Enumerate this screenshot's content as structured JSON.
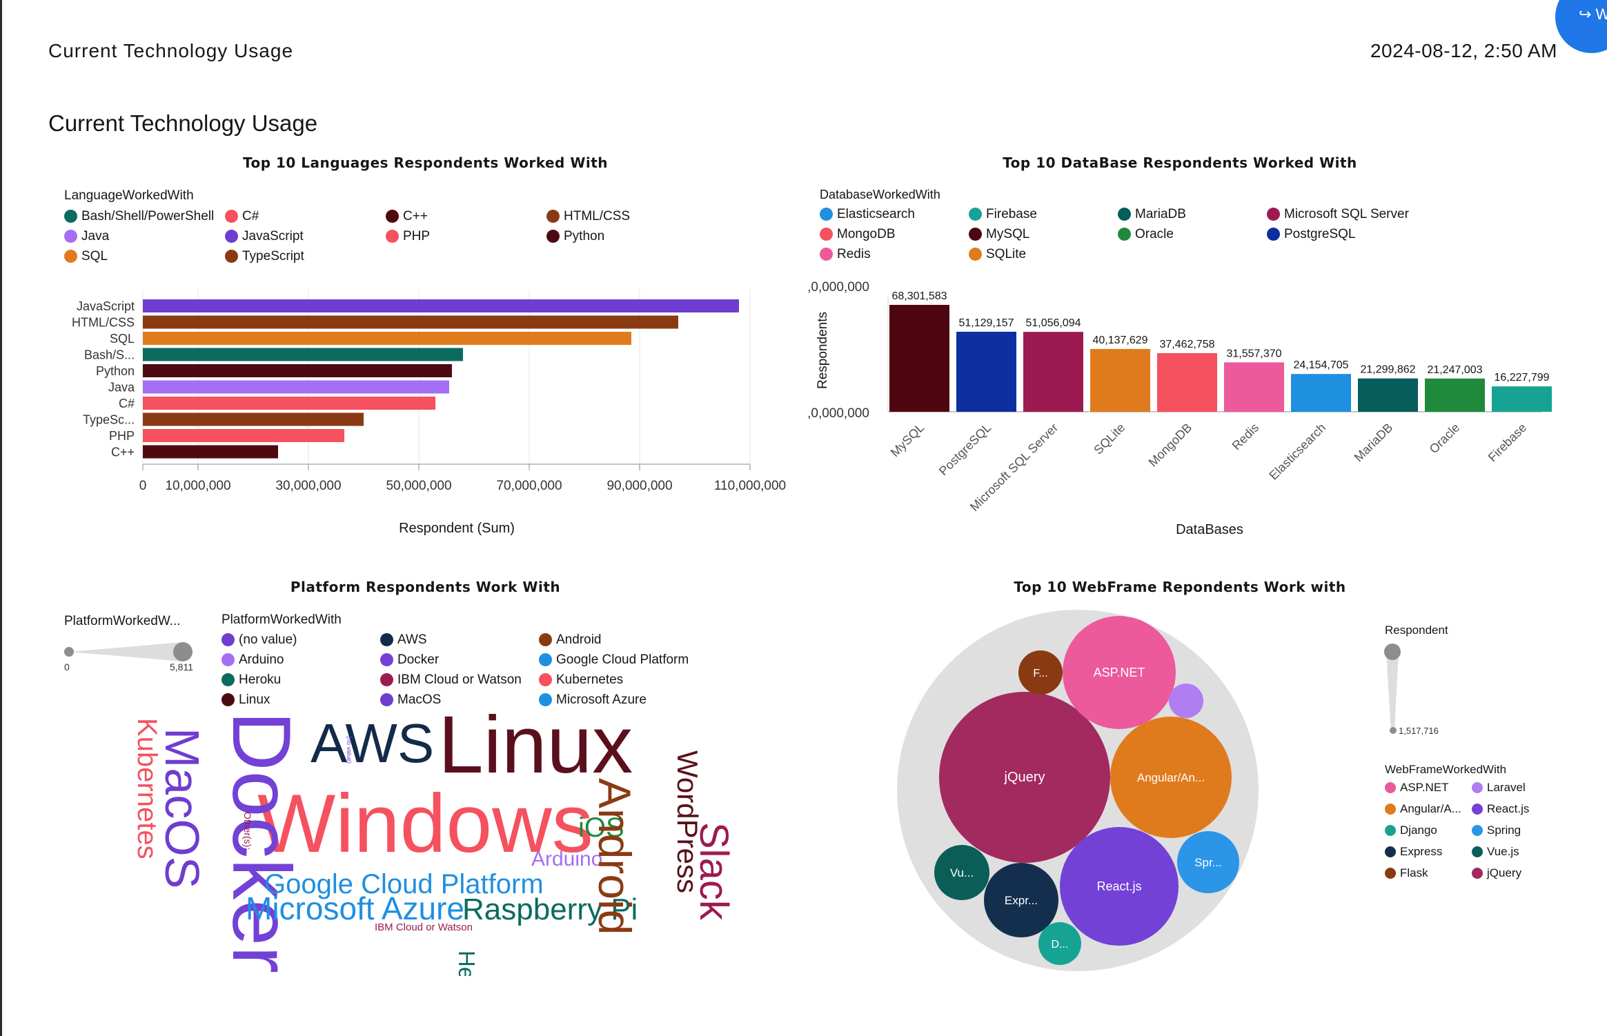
{
  "header": {
    "title": "Current Technology Usage",
    "timestamp": "2024-08-12, 2:50 AM",
    "badge_text": "↪ W"
  },
  "dashboard_title": "Current Technology Usage",
  "chart_data": [
    {
      "id": "languages",
      "type": "bar",
      "orientation": "horizontal",
      "title": "Top 10 Languages Respondents Worked With",
      "legend_title": "LanguageWorkedWith",
      "legend": [
        {
          "label": "Bash/Shell/PowerShell",
          "color": "#0b6b5f"
        },
        {
          "label": "C#",
          "color": "#f5515f"
        },
        {
          "label": "C++",
          "color": "#4e0a0f"
        },
        {
          "label": "HTML/CSS",
          "color": "#8a3a12"
        },
        {
          "label": "Java",
          "color": "#a66ef2"
        },
        {
          "label": "JavaScript",
          "color": "#6f3dd0"
        },
        {
          "label": "PHP",
          "color": "#f5515f"
        },
        {
          "label": "Python",
          "color": "#4e0a12"
        },
        {
          "label": "SQL",
          "color": "#e07b1d"
        },
        {
          "label": "TypeScript",
          "color": "#8a3a12"
        }
      ],
      "categories": [
        "JavaScript",
        "HTML/CSS",
        "SQL",
        "Bash/S...",
        "Python",
        "Java",
        "C#",
        "TypeSc...",
        "PHP",
        "C++"
      ],
      "values": [
        108000000,
        97000000,
        88500000,
        58000000,
        56000000,
        55500000,
        53000000,
        40000000,
        36500000,
        24500000
      ],
      "colors": [
        "#6f3dd0",
        "#8a3a12",
        "#e07b1d",
        "#0b6b5f",
        "#4e0a12",
        "#a66ef2",
        "#f5515f",
        "#8a3a12",
        "#f5515f",
        "#4e0a0f"
      ],
      "xticks": [
        "0",
        "10,000,000",
        "30,000,000",
        "50,000,000",
        "70,000,000",
        "90,000,000",
        "110,000,000"
      ],
      "xtick_values": [
        0,
        10000000,
        30000000,
        50000000,
        70000000,
        90000000,
        110000000
      ],
      "xlim": [
        0,
        110000000
      ],
      "xlabel": "Respondent (Sum)",
      "grid": true
    },
    {
      "id": "databases",
      "type": "bar",
      "orientation": "vertical",
      "title": "Top 10 DataBase Respondents Worked With",
      "legend_title": "DatabaseWorkedWith",
      "legend": [
        {
          "label": "Elasticsearch",
          "color": "#1f8fe0"
        },
        {
          "label": "Firebase",
          "color": "#16a394"
        },
        {
          "label": "MariaDB",
          "color": "#075d5b"
        },
        {
          "label": "Microsoft SQL Server",
          "color": "#9c1a52"
        },
        {
          "label": "MongoDB",
          "color": "#f5515f"
        },
        {
          "label": "MySQL",
          "color": "#4e0710"
        },
        {
          "label": "Oracle",
          "color": "#1f8a3b"
        },
        {
          "label": "PostgreSQL",
          "color": "#0d2fa0"
        },
        {
          "label": "Redis",
          "color": "#ec5a9b"
        },
        {
          "label": "SQLite",
          "color": "#e07b1d"
        }
      ],
      "categories": [
        "MySQL",
        "PostgreSQL",
        "Microsoft SQL Server",
        "SQLite",
        "MongoDB",
        "Redis",
        "Elasticsearch",
        "MariaDB",
        "Oracle",
        "Firebase"
      ],
      "values": [
        68301583,
        51129157,
        51056094,
        40137629,
        37462758,
        31557370,
        24154705,
        21299862,
        21247003,
        16227799
      ],
      "data_labels": [
        "68,301,583",
        "51,129,157",
        "51,056,094",
        "40,137,629",
        "37,462,758",
        "31,557,370",
        "24,154,705",
        "21,299,862",
        "21,247,003",
        "16,227,799"
      ],
      "colors": [
        "#4e0710",
        "#0d2fa0",
        "#9c1a52",
        "#e07b1d",
        "#f5515f",
        "#ec5a9b",
        "#1f8fe0",
        "#075d5b",
        "#1f8a3b",
        "#16a394"
      ],
      "yticks": [
        ",0,000,000",
        ",0,000,000"
      ],
      "ylabel": "Respondents",
      "xlabel": "DataBases"
    },
    {
      "id": "platforms",
      "type": "wordcloud",
      "title": "Platform Respondents Work With",
      "size_legend_title": "PlatformWorkedW...",
      "size_min": "0",
      "size_max": "5,811",
      "legend_title": "PlatformWorkedWith",
      "legend": [
        {
          "label": "(no value)",
          "color": "#6f3dd0"
        },
        {
          "label": "AWS",
          "color": "#142a4a"
        },
        {
          "label": "Android",
          "color": "#8a3a12"
        },
        {
          "label": "Arduino",
          "color": "#a66ef2"
        },
        {
          "label": "Docker",
          "color": "#7341d6"
        },
        {
          "label": "Google Cloud Platform",
          "color": "#1f8fe0"
        },
        {
          "label": "Heroku",
          "color": "#0b6b5f"
        },
        {
          "label": "IBM Cloud or Watson",
          "color": "#9c1a52"
        },
        {
          "label": "Kubernetes",
          "color": "#f5515f"
        },
        {
          "label": "Linux",
          "color": "#4e0a12"
        },
        {
          "label": "MacOS",
          "color": "#6f3dd0"
        },
        {
          "label": "Microsoft Azure",
          "color": "#1f8fe0"
        }
      ],
      "words": [
        {
          "text": "Linux",
          "color": "#5a0f1c"
        },
        {
          "text": "AWS",
          "color": "#142a4a"
        },
        {
          "text": "Windows",
          "color": "#f5515f"
        },
        {
          "text": "Docker",
          "color": "#7341d6"
        },
        {
          "text": "MacOS",
          "color": "#6f3dd0"
        },
        {
          "text": "Kubernetes",
          "color": "#f5515f"
        },
        {
          "text": "Google Cloud Platform",
          "color": "#1f8fe0"
        },
        {
          "text": "Microsoft Azure",
          "color": "#1f8fe0"
        },
        {
          "text": "Arduino",
          "color": "#a66ef2"
        },
        {
          "text": "iOS",
          "color": "#1f8a3b"
        },
        {
          "text": "Raspberry Pi",
          "color": "#0b6b5f"
        },
        {
          "text": "Android",
          "color": "#8a3a12"
        },
        {
          "text": "WordPress",
          "color": "#5a0f1c"
        },
        {
          "text": "Slack",
          "color": "#9c1a52"
        },
        {
          "text": "Heroku",
          "color": "#0b6b5f"
        },
        {
          "text": "IBM Cloud or Watson",
          "color": "#9c1a52"
        },
        {
          "text": "Other(s):",
          "color": "#9c1a52"
        },
        {
          "text": "(no value)",
          "color": "#6f3dd0"
        }
      ]
    },
    {
      "id": "webframes",
      "type": "bubble",
      "title": "Top 10 WebFrame Repondents Work with",
      "size_legend_title": "Respondent",
      "size_min": "1,517,716",
      "legend_title": "WebFrameWorkedWith",
      "legend": [
        {
          "label": "ASP.NET",
          "color": "#ec5a9b"
        },
        {
          "label": "Laravel",
          "color": "#b07df2"
        },
        {
          "label": "Angular/A...",
          "color": "#e07b1d"
        },
        {
          "label": "React.js",
          "color": "#7341d6"
        },
        {
          "label": "Django",
          "color": "#16a394"
        },
        {
          "label": "Spring",
          "color": "#2b95e8"
        },
        {
          "label": "Express",
          "color": "#142f4e"
        },
        {
          "label": "Vue.js",
          "color": "#0b5e58"
        },
        {
          "label": "Flask",
          "color": "#8a3a12"
        },
        {
          "label": "jQuery",
          "color": "#a22a5e"
        }
      ],
      "bubbles": [
        {
          "label": "jQuery",
          "color": "#a22a5e"
        },
        {
          "label": "ASP.NET",
          "color": "#ec5a9b"
        },
        {
          "label": "Angular/An...",
          "color": "#e07b1d"
        },
        {
          "label": "React.js",
          "color": "#7341d6"
        },
        {
          "label": "Spr...",
          "color": "#2b95e8"
        },
        {
          "label": "Expr...",
          "color": "#142f4e"
        },
        {
          "label": "Vu...",
          "color": "#0b5e58"
        },
        {
          "label": "F...",
          "color": "#8a3a12"
        },
        {
          "label": "D...",
          "color": "#16a394"
        },
        {
          "label": "",
          "color": "#b07df2"
        }
      ]
    }
  ]
}
